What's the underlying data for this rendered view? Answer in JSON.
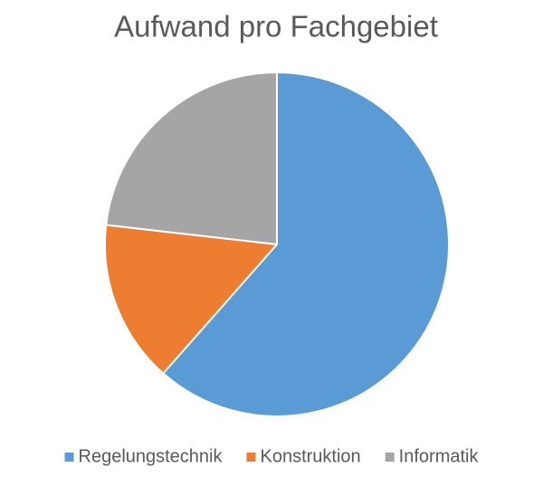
{
  "chart_data": {
    "type": "pie",
    "title": "Aufwand pro Fachgebiet",
    "categories": [
      "Regelungstechnik",
      "Konstruktion",
      "Informatik"
    ],
    "values": [
      61.5,
      15.3,
      23.2
    ],
    "colors": [
      "#5b9bd5",
      "#ed7d31",
      "#a5a5a5"
    ],
    "legend": "bottom"
  }
}
